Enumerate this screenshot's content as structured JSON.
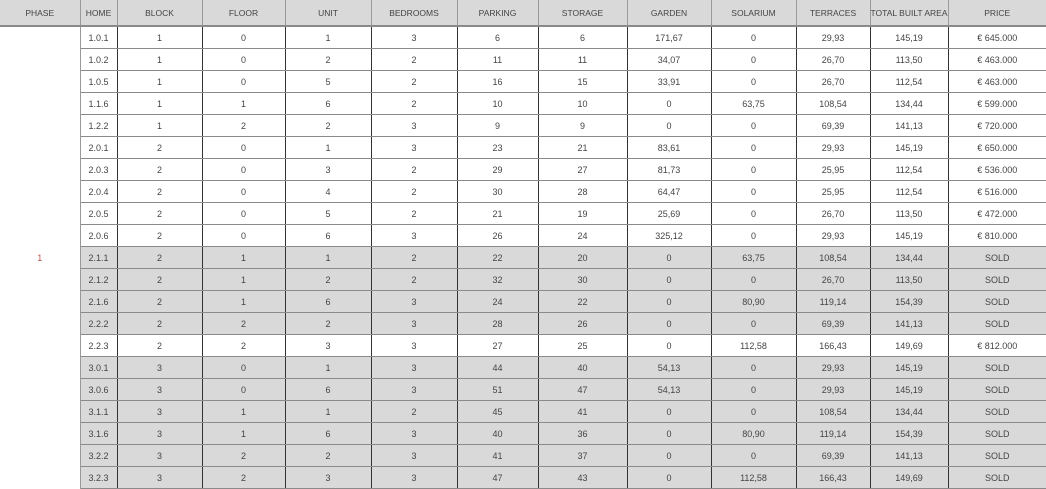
{
  "columns": [
    "PHASE",
    "HOME",
    "BLOCK",
    "FLOOR",
    "UNIT",
    "BEDROOMS",
    "PARKING",
    "STORAGE",
    "GARDEN",
    "SOLARIUM",
    "TERRACES",
    "TOTAL BUILT AREA",
    "PRICE"
  ],
  "phase": "1",
  "colors": {
    "header_bg": "#d9d9d9",
    "sold_row_bg": "#d9d9d9",
    "phase_text": "#c0504d"
  },
  "rows": [
    {
      "home": "1.0.1",
      "block": "1",
      "floor": "0",
      "unit": "1",
      "bedrooms": "3",
      "parking": "6",
      "storage": "6",
      "garden": "171,67",
      "solarium": "0",
      "terraces": "29,93",
      "total_built_area": "145,19",
      "price": "€ 645.000",
      "sold": false
    },
    {
      "home": "1.0.2",
      "block": "1",
      "floor": "0",
      "unit": "2",
      "bedrooms": "2",
      "parking": "11",
      "storage": "11",
      "garden": "34,07",
      "solarium": "0",
      "terraces": "26,70",
      "total_built_area": "113,50",
      "price": "€ 463.000",
      "sold": false
    },
    {
      "home": "1.0.5",
      "block": "1",
      "floor": "0",
      "unit": "5",
      "bedrooms": "2",
      "parking": "16",
      "storage": "15",
      "garden": "33,91",
      "solarium": "0",
      "terraces": "26,70",
      "total_built_area": "112,54",
      "price": "€ 463.000",
      "sold": false
    },
    {
      "home": "1.1.6",
      "block": "1",
      "floor": "1",
      "unit": "6",
      "bedrooms": "2",
      "parking": "10",
      "storage": "10",
      "garden": "0",
      "solarium": "63,75",
      "terraces": "108,54",
      "total_built_area": "134,44",
      "price": "€ 599.000",
      "sold": false
    },
    {
      "home": "1.2.2",
      "block": "1",
      "floor": "2",
      "unit": "2",
      "bedrooms": "3",
      "parking": "9",
      "storage": "9",
      "garden": "0",
      "solarium": "0",
      "terraces": "69,39",
      "total_built_area": "141,13",
      "price": "€ 720.000",
      "sold": false
    },
    {
      "home": "2.0.1",
      "block": "2",
      "floor": "0",
      "unit": "1",
      "bedrooms": "3",
      "parking": "23",
      "storage": "21",
      "garden": "83,61",
      "solarium": "0",
      "terraces": "29,93",
      "total_built_area": "145,19",
      "price": "€ 650.000",
      "sold": false
    },
    {
      "home": "2.0.3",
      "block": "2",
      "floor": "0",
      "unit": "3",
      "bedrooms": "2",
      "parking": "29",
      "storage": "27",
      "garden": "81,73",
      "solarium": "0",
      "terraces": "25,95",
      "total_built_area": "112,54",
      "price": "€ 536.000",
      "sold": false
    },
    {
      "home": "2.0.4",
      "block": "2",
      "floor": "0",
      "unit": "4",
      "bedrooms": "2",
      "parking": "30",
      "storage": "28",
      "garden": "64,47",
      "solarium": "0",
      "terraces": "25,95",
      "total_built_area": "112,54",
      "price": "€ 516.000",
      "sold": false
    },
    {
      "home": "2.0.5",
      "block": "2",
      "floor": "0",
      "unit": "5",
      "bedrooms": "2",
      "parking": "21",
      "storage": "19",
      "garden": "25,69",
      "solarium": "0",
      "terraces": "26,70",
      "total_built_area": "113,50",
      "price": "€ 472.000",
      "sold": false
    },
    {
      "home": "2.0.6",
      "block": "2",
      "floor": "0",
      "unit": "6",
      "bedrooms": "3",
      "parking": "26",
      "storage": "24",
      "garden": "325,12",
      "solarium": "0",
      "terraces": "29,93",
      "total_built_area": "145,19",
      "price": "€ 810.000",
      "sold": false
    },
    {
      "home": "2.1.1",
      "block": "2",
      "floor": "1",
      "unit": "1",
      "bedrooms": "2",
      "parking": "22",
      "storage": "20",
      "garden": "0",
      "solarium": "63,75",
      "terraces": "108,54",
      "total_built_area": "134,44",
      "price": "SOLD",
      "sold": true
    },
    {
      "home": "2.1.2",
      "block": "2",
      "floor": "1",
      "unit": "2",
      "bedrooms": "2",
      "parking": "32",
      "storage": "30",
      "garden": "0",
      "solarium": "0",
      "terraces": "26,70",
      "total_built_area": "113,50",
      "price": "SOLD",
      "sold": true
    },
    {
      "home": "2.1.6",
      "block": "2",
      "floor": "1",
      "unit": "6",
      "bedrooms": "3",
      "parking": "24",
      "storage": "22",
      "garden": "0",
      "solarium": "80,90",
      "terraces": "119,14",
      "total_built_area": "154,39",
      "price": "SOLD",
      "sold": true
    },
    {
      "home": "2.2.2",
      "block": "2",
      "floor": "2",
      "unit": "2",
      "bedrooms": "3",
      "parking": "28",
      "storage": "26",
      "garden": "0",
      "solarium": "0",
      "terraces": "69,39",
      "total_built_area": "141,13",
      "price": "SOLD",
      "sold": true
    },
    {
      "home": "2.2.3",
      "block": "2",
      "floor": "2",
      "unit": "3",
      "bedrooms": "3",
      "parking": "27",
      "storage": "25",
      "garden": "0",
      "solarium": "112,58",
      "terraces": "166,43",
      "total_built_area": "149,69",
      "price": "€ 812.000",
      "sold": false
    },
    {
      "home": "3.0.1",
      "block": "3",
      "floor": "0",
      "unit": "1",
      "bedrooms": "3",
      "parking": "44",
      "storage": "40",
      "garden": "54,13",
      "solarium": "0",
      "terraces": "29,93",
      "total_built_area": "145,19",
      "price": "SOLD",
      "sold": true
    },
    {
      "home": "3.0.6",
      "block": "3",
      "floor": "0",
      "unit": "6",
      "bedrooms": "3",
      "parking": "51",
      "storage": "47",
      "garden": "54,13",
      "solarium": "0",
      "terraces": "29,93",
      "total_built_area": "145,19",
      "price": "SOLD",
      "sold": true
    },
    {
      "home": "3.1.1",
      "block": "3",
      "floor": "1",
      "unit": "1",
      "bedrooms": "2",
      "parking": "45",
      "storage": "41",
      "garden": "0",
      "solarium": "0",
      "terraces": "108,54",
      "total_built_area": "134,44",
      "price": "SOLD",
      "sold": true
    },
    {
      "home": "3.1.6",
      "block": "3",
      "floor": "1",
      "unit": "6",
      "bedrooms": "3",
      "parking": "40",
      "storage": "36",
      "garden": "0",
      "solarium": "80,90",
      "terraces": "119,14",
      "total_built_area": "154,39",
      "price": "SOLD",
      "sold": true
    },
    {
      "home": "3.2.2",
      "block": "3",
      "floor": "2",
      "unit": "2",
      "bedrooms": "3",
      "parking": "41",
      "storage": "37",
      "garden": "0",
      "solarium": "0",
      "terraces": "69,39",
      "total_built_area": "141,13",
      "price": "SOLD",
      "sold": true
    },
    {
      "home": "3.2.3",
      "block": "3",
      "floor": "2",
      "unit": "3",
      "bedrooms": "3",
      "parking": "47",
      "storage": "43",
      "garden": "0",
      "solarium": "112,58",
      "terraces": "166,43",
      "total_built_area": "149,69",
      "price": "SOLD",
      "sold": true
    }
  ]
}
